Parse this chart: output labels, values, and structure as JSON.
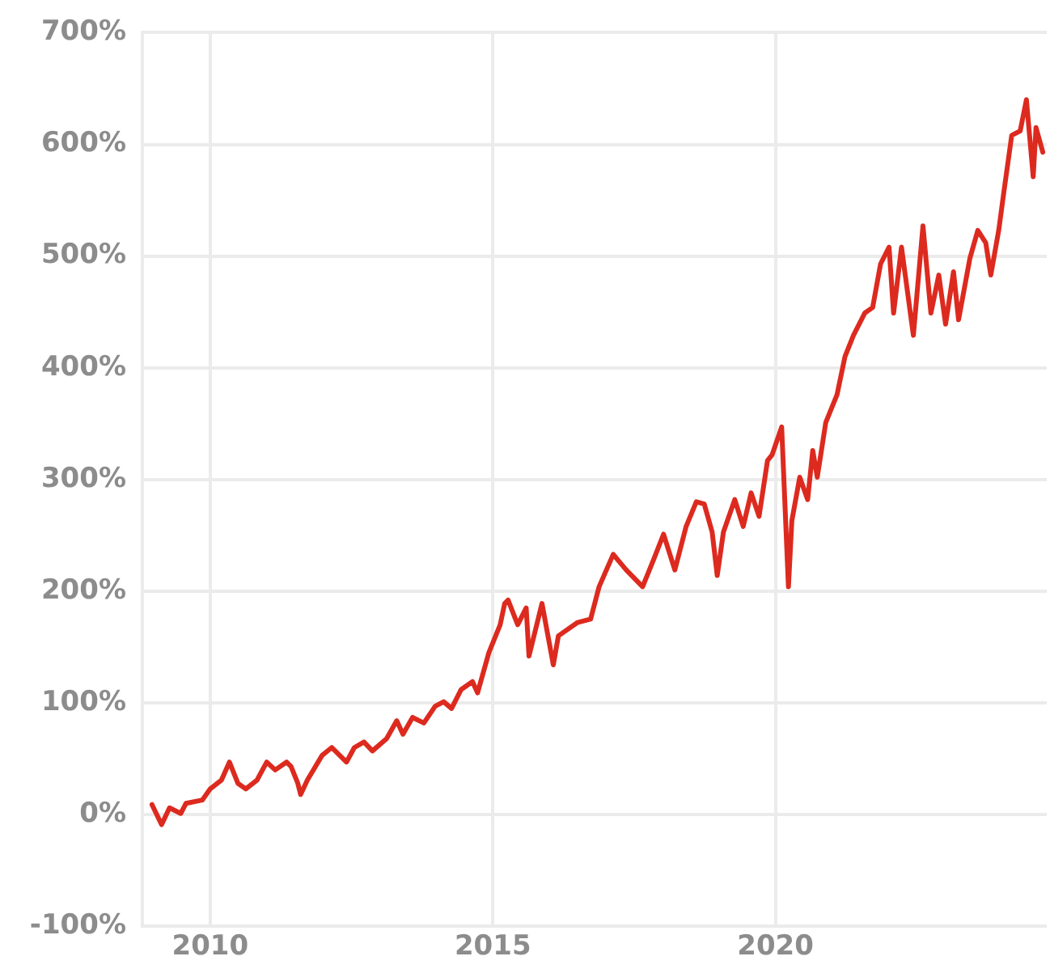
{
  "chart_data": {
    "type": "line",
    "x": [
      2008.97,
      2009.14,
      2009.28,
      2009.48,
      2009.57,
      2009.86,
      2010.0,
      2010.2,
      2010.34,
      2010.49,
      2010.63,
      2010.83,
      2011.0,
      2011.15,
      2011.35,
      2011.43,
      2011.55,
      2011.6,
      2011.72,
      2011.98,
      2012.15,
      2012.41,
      2012.55,
      2012.72,
      2012.87,
      2013.12,
      2013.3,
      2013.41,
      2013.58,
      2013.78,
      2013.98,
      2014.13,
      2014.27,
      2014.44,
      2014.64,
      2014.73,
      2014.93,
      2015.13,
      2015.21,
      2015.27,
      2015.44,
      2015.59,
      2015.64,
      2015.87,
      2016.07,
      2016.16,
      2016.5,
      2016.73,
      2016.88,
      2017.13,
      2017.36,
      2017.65,
      2017.85,
      2018.02,
      2018.22,
      2018.42,
      2018.6,
      2018.74,
      2018.88,
      2018.97,
      2019.08,
      2019.28,
      2019.43,
      2019.57,
      2019.71,
      2019.86,
      2019.94,
      2020.11,
      2020.23,
      2020.29,
      2020.43,
      2020.57,
      2020.66,
      2020.74,
      2020.89,
      2021.09,
      2021.23,
      2021.38,
      2021.58,
      2021.72,
      2021.86,
      2022.01,
      2022.09,
      2022.23,
      2022.44,
      2022.61,
      2022.75,
      2022.89,
      2023.01,
      2023.15,
      2023.24,
      2023.44,
      2023.58,
      2023.72,
      2023.81,
      2023.95,
      2024.04,
      2024.18,
      2024.33,
      2024.44,
      2024.56,
      2024.61,
      2024.73
    ],
    "series": [
      {
        "color": "#dd2a1f",
        "values": [
          9,
          -9,
          6,
          1,
          10,
          13,
          23,
          31,
          47,
          28,
          23,
          31,
          47,
          40,
          47,
          43,
          28,
          18,
          31,
          53,
          60,
          47,
          60,
          65,
          57,
          68,
          84,
          72,
          87,
          82,
          97,
          101,
          95,
          112,
          119,
          109,
          145,
          170,
          189,
          192,
          170,
          185,
          142,
          189,
          134,
          160,
          172,
          175,
          204,
          233,
          219,
          204,
          229,
          251,
          219,
          258,
          280,
          278,
          253,
          214,
          253,
          282,
          258,
          288,
          267,
          317,
          322,
          347,
          204,
          263,
          302,
          282,
          326,
          302,
          351,
          376,
          410,
          429,
          449,
          454,
          493,
          508,
          449,
          508,
          429,
          527,
          449,
          483,
          439,
          486,
          443,
          498,
          523,
          512,
          483,
          523,
          557,
          608,
          612,
          640,
          571,
          615,
          593
        ]
      }
    ],
    "xlim": [
      2008.8,
      2024.8
    ],
    "xticks": [
      2010,
      2015,
      2020
    ],
    "ylim": [
      -100,
      700
    ],
    "yticks": [
      {
        "value": -100,
        "label": "-100%"
      },
      {
        "value": 0,
        "label": "0%"
      },
      {
        "value": 100,
        "label": "100%"
      },
      {
        "value": 200,
        "label": "200%"
      },
      {
        "value": 300,
        "label": "300%"
      },
      {
        "value": 400,
        "label": "400%"
      },
      {
        "value": 500,
        "label": "500%"
      },
      {
        "value": 600,
        "label": "600%"
      },
      {
        "value": 700,
        "label": "700%"
      }
    ],
    "grid": true,
    "legend": false,
    "marker": "none",
    "line_style": "solid"
  }
}
